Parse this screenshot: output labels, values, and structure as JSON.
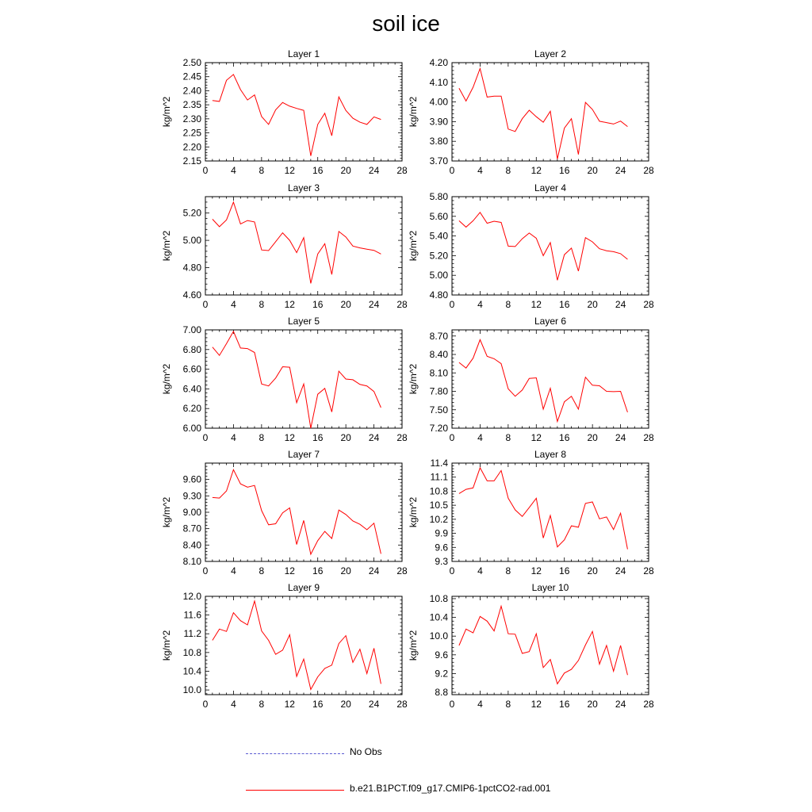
{
  "title": "soil ice",
  "colors": {
    "model": "#ff0000",
    "obs": "#5a5ad2",
    "axis": "#000000"
  },
  "legend": {
    "obs_label": "No Obs",
    "model_label": "b.e21.B1PCT.f09_g17.CMIP6-1pctCO2-rad.001"
  },
  "chart_data": [
    {
      "type": "line",
      "title": "Layer 1",
      "xlabel": "",
      "ylabel": "kg/m^2",
      "xlim": [
        0,
        28
      ],
      "ylim": [
        2.15,
        2.5
      ],
      "xticks": [
        0,
        4,
        8,
        12,
        16,
        20,
        24,
        28
      ],
      "xtick_labels": [
        "0",
        "4",
        "8",
        "12",
        "16",
        "20",
        "24",
        "28"
      ],
      "yticks": [
        2.15,
        2.2,
        2.25,
        2.3,
        2.35,
        2.4,
        2.45,
        2.5
      ],
      "ytick_labels": [
        "2.15",
        "2.20",
        "2.25",
        "2.30",
        "2.35",
        "2.40",
        "2.45",
        "2.50"
      ],
      "series": [
        {
          "name": "b.e21.B1PCT.f09_g17.CMIP6-1pctCO2-rad.001",
          "x": [
            1,
            2,
            3,
            4,
            5,
            6,
            7,
            8,
            9,
            10,
            11,
            12,
            13,
            14,
            15,
            16,
            17,
            18,
            19,
            20,
            21,
            22,
            23,
            24,
            25
          ],
          "y": [
            2.365,
            2.362,
            2.437,
            2.458,
            2.404,
            2.367,
            2.385,
            2.308,
            2.28,
            2.332,
            2.358,
            2.345,
            2.337,
            2.33,
            2.168,
            2.28,
            2.32,
            2.24,
            2.378,
            2.33,
            2.302,
            2.288,
            2.28,
            2.307,
            2.298
          ]
        }
      ]
    },
    {
      "type": "line",
      "title": "Layer 2",
      "xlabel": "",
      "ylabel": "kg/m^2",
      "xlim": [
        0,
        28
      ],
      "ylim": [
        3.7,
        4.2
      ],
      "xticks": [
        0,
        4,
        8,
        12,
        16,
        20,
        24,
        28
      ],
      "xtick_labels": [
        "0",
        "4",
        "8",
        "12",
        "16",
        "20",
        "24",
        "28"
      ],
      "yticks": [
        3.7,
        3.8,
        3.9,
        4.0,
        4.1,
        4.2
      ],
      "ytick_labels": [
        "3.70",
        "3.80",
        "3.90",
        "4.00",
        "4.10",
        "4.20"
      ],
      "series": [
        {
          "name": "b.e21.B1PCT.f09_g17.CMIP6-1pctCO2-rad.001",
          "x": [
            1,
            2,
            3,
            4,
            5,
            6,
            7,
            8,
            9,
            10,
            11,
            12,
            13,
            14,
            15,
            16,
            17,
            18,
            19,
            20,
            21,
            22,
            23,
            24,
            25
          ],
          "y": [
            4.07,
            4.005,
            4.075,
            4.17,
            4.025,
            4.03,
            4.03,
            3.862,
            3.85,
            3.915,
            3.958,
            3.925,
            3.897,
            3.953,
            3.71,
            3.867,
            3.915,
            3.733,
            3.998,
            3.962,
            3.902,
            3.895,
            3.888,
            3.903,
            3.875
          ]
        }
      ]
    },
    {
      "type": "line",
      "title": "Layer 3",
      "xlabel": "",
      "ylabel": "kg/m^2",
      "xlim": [
        0,
        28
      ],
      "ylim": [
        4.6,
        5.32
      ],
      "xticks": [
        0,
        4,
        8,
        12,
        16,
        20,
        24,
        28
      ],
      "xtick_labels": [
        "0",
        "4",
        "8",
        "12",
        "16",
        "20",
        "24",
        "28"
      ],
      "yticks": [
        4.6,
        4.8,
        5.0,
        5.2
      ],
      "ytick_labels": [
        "4.60",
        "4.80",
        "5.00",
        "5.20"
      ],
      "series": [
        {
          "name": "b.e21.B1PCT.f09_g17.CMIP6-1pctCO2-rad.001",
          "x": [
            1,
            2,
            3,
            4,
            5,
            6,
            7,
            8,
            9,
            10,
            11,
            12,
            13,
            14,
            15,
            16,
            17,
            18,
            19,
            20,
            21,
            22,
            23,
            24,
            25
          ],
          "y": [
            5.155,
            5.1,
            5.15,
            5.28,
            5.12,
            5.145,
            5.135,
            4.93,
            4.925,
            4.99,
            5.055,
            5.0,
            4.91,
            5.02,
            4.685,
            4.9,
            4.975,
            4.75,
            5.065,
            5.025,
            4.958,
            4.945,
            4.935,
            4.927,
            4.9
          ]
        }
      ]
    },
    {
      "type": "line",
      "title": "Layer 4",
      "xlabel": "",
      "ylabel": "kg/m^2",
      "xlim": [
        0,
        28
      ],
      "ylim": [
        4.8,
        5.8
      ],
      "xticks": [
        0,
        4,
        8,
        12,
        16,
        20,
        24,
        28
      ],
      "xtick_labels": [
        "0",
        "4",
        "8",
        "12",
        "16",
        "20",
        "24",
        "28"
      ],
      "yticks": [
        4.8,
        5.0,
        5.2,
        5.4,
        5.6,
        5.8
      ],
      "ytick_labels": [
        "4.80",
        "5.00",
        "5.20",
        "5.40",
        "5.60",
        "5.80"
      ],
      "series": [
        {
          "name": "b.e21.B1PCT.f09_g17.CMIP6-1pctCO2-rad.001",
          "x": [
            1,
            2,
            3,
            4,
            5,
            6,
            7,
            8,
            9,
            10,
            11,
            12,
            13,
            14,
            15,
            16,
            17,
            18,
            19,
            20,
            21,
            22,
            23,
            24,
            25
          ],
          "y": [
            5.555,
            5.49,
            5.555,
            5.64,
            5.53,
            5.55,
            5.538,
            5.297,
            5.293,
            5.372,
            5.43,
            5.377,
            5.2,
            5.333,
            4.95,
            5.21,
            5.277,
            5.043,
            5.383,
            5.34,
            5.27,
            5.25,
            5.24,
            5.22,
            5.163
          ]
        }
      ]
    },
    {
      "type": "line",
      "title": "Layer 5",
      "xlabel": "",
      "ylabel": "kg/m^2",
      "xlim": [
        0,
        28
      ],
      "ylim": [
        6.0,
        7.0
      ],
      "xticks": [
        0,
        4,
        8,
        12,
        16,
        20,
        24,
        28
      ],
      "xtick_labels": [
        "0",
        "4",
        "8",
        "12",
        "16",
        "20",
        "24",
        "28"
      ],
      "yticks": [
        6.0,
        6.2,
        6.4,
        6.6,
        6.8,
        7.0
      ],
      "ytick_labels": [
        "6.00",
        "6.20",
        "6.40",
        "6.60",
        "6.80",
        "7.00"
      ],
      "series": [
        {
          "name": "b.e21.B1PCT.f09_g17.CMIP6-1pctCO2-rad.001",
          "x": [
            1,
            2,
            3,
            4,
            5,
            6,
            7,
            8,
            9,
            10,
            11,
            12,
            13,
            14,
            15,
            16,
            17,
            18,
            19,
            20,
            21,
            22,
            23,
            24,
            25
          ],
          "y": [
            6.825,
            6.74,
            6.86,
            6.985,
            6.815,
            6.81,
            6.77,
            6.45,
            6.43,
            6.51,
            6.625,
            6.62,
            6.26,
            6.45,
            6.0,
            6.345,
            6.405,
            6.165,
            6.58,
            6.5,
            6.493,
            6.445,
            6.43,
            6.373,
            6.21
          ]
        }
      ]
    },
    {
      "type": "line",
      "title": "Layer 6",
      "xlabel": "",
      "ylabel": "kg/m^2",
      "xlim": [
        0,
        28
      ],
      "ylim": [
        7.2,
        8.8
      ],
      "xticks": [
        0,
        4,
        8,
        12,
        16,
        20,
        24,
        28
      ],
      "xtick_labels": [
        "0",
        "4",
        "8",
        "12",
        "16",
        "20",
        "24",
        "28"
      ],
      "yticks": [
        7.2,
        7.5,
        7.8,
        8.1,
        8.4,
        8.7
      ],
      "ytick_labels": [
        "7.20",
        "7.50",
        "7.80",
        "8.10",
        "8.40",
        "8.70"
      ],
      "series": [
        {
          "name": "b.e21.B1PCT.f09_g17.CMIP6-1pctCO2-rad.001",
          "x": [
            1,
            2,
            3,
            4,
            5,
            6,
            7,
            8,
            9,
            10,
            11,
            12,
            13,
            14,
            15,
            16,
            17,
            18,
            19,
            20,
            21,
            22,
            23,
            24,
            25
          ],
          "y": [
            8.27,
            8.18,
            8.34,
            8.64,
            8.37,
            8.33,
            8.25,
            7.84,
            7.72,
            7.82,
            8.01,
            8.02,
            7.51,
            7.85,
            7.31,
            7.63,
            7.72,
            7.51,
            8.03,
            7.9,
            7.89,
            7.8,
            7.795,
            7.8,
            7.46
          ]
        }
      ]
    },
    {
      "type": "line",
      "title": "Layer 7",
      "xlabel": "",
      "ylabel": "kg/m^2",
      "xlim": [
        0,
        28
      ],
      "ylim": [
        8.1,
        9.9
      ],
      "xticks": [
        0,
        4,
        8,
        12,
        16,
        20,
        24,
        28
      ],
      "xtick_labels": [
        "0",
        "4",
        "8",
        "12",
        "16",
        "20",
        "24",
        "28"
      ],
      "yticks": [
        8.1,
        8.4,
        8.7,
        9.0,
        9.3,
        9.6
      ],
      "ytick_labels": [
        "8.10",
        "8.40",
        "8.70",
        "9.00",
        "9.30",
        "9.60"
      ],
      "series": [
        {
          "name": "b.e21.B1PCT.f09_g17.CMIP6-1pctCO2-rad.001",
          "x": [
            1,
            2,
            3,
            4,
            5,
            6,
            7,
            8,
            9,
            10,
            11,
            12,
            13,
            14,
            15,
            16,
            17,
            18,
            19,
            20,
            21,
            22,
            23,
            24,
            25
          ],
          "y": [
            9.27,
            9.26,
            9.39,
            9.78,
            9.52,
            9.46,
            9.49,
            9.03,
            8.77,
            8.79,
            8.99,
            9.08,
            8.41,
            8.85,
            8.23,
            8.48,
            8.65,
            8.52,
            9.04,
            8.96,
            8.84,
            8.78,
            8.68,
            8.8,
            8.24
          ]
        }
      ]
    },
    {
      "type": "line",
      "title": "Layer 8",
      "xlabel": "",
      "ylabel": "kg/m^2",
      "xlim": [
        0,
        28
      ],
      "ylim": [
        9.3,
        11.4
      ],
      "xticks": [
        0,
        4,
        8,
        12,
        16,
        20,
        24,
        28
      ],
      "xtick_labels": [
        "0",
        "4",
        "8",
        "12",
        "16",
        "20",
        "24",
        "28"
      ],
      "yticks": [
        9.3,
        9.6,
        9.9,
        10.2,
        10.5,
        10.8,
        11.1,
        11.4
      ],
      "ytick_labels": [
        "9.3",
        "9.6",
        "9.9",
        "10.2",
        "10.5",
        "10.8",
        "11.1",
        "11.4"
      ],
      "series": [
        {
          "name": "b.e21.B1PCT.f09_g17.CMIP6-1pctCO2-rad.001",
          "x": [
            1,
            2,
            3,
            4,
            5,
            6,
            7,
            8,
            9,
            10,
            11,
            12,
            13,
            14,
            15,
            16,
            17,
            18,
            19,
            20,
            21,
            22,
            23,
            24,
            25
          ],
          "y": [
            10.75,
            10.84,
            10.87,
            11.3,
            11.02,
            11.02,
            11.24,
            10.65,
            10.4,
            10.26,
            10.45,
            10.65,
            9.8,
            10.28,
            9.61,
            9.76,
            10.06,
            10.03,
            10.54,
            10.57,
            10.21,
            10.25,
            9.98,
            10.33,
            9.56
          ]
        }
      ]
    },
    {
      "type": "line",
      "title": "Layer 9",
      "xlabel": "",
      "ylabel": "kg/m^2",
      "xlim": [
        0,
        28
      ],
      "ylim": [
        9.9,
        12.0
      ],
      "xticks": [
        0,
        4,
        8,
        12,
        16,
        20,
        24,
        28
      ],
      "xtick_labels": [
        "0",
        "4",
        "8",
        "12",
        "16",
        "20",
        "24",
        "28"
      ],
      "yticks": [
        10.0,
        10.4,
        10.8,
        11.2,
        11.6,
        12.0
      ],
      "ytick_labels": [
        "10.0",
        "10.4",
        "10.8",
        "11.2",
        "11.6",
        "12.0"
      ],
      "series": [
        {
          "name": "b.e21.B1PCT.f09_g17.CMIP6-1pctCO2-rad.001",
          "x": [
            1,
            2,
            3,
            4,
            5,
            6,
            7,
            8,
            9,
            10,
            11,
            12,
            13,
            14,
            15,
            16,
            17,
            18,
            19,
            20,
            21,
            22,
            23,
            24,
            25
          ],
          "y": [
            11.06,
            11.3,
            11.25,
            11.65,
            11.48,
            11.39,
            11.9,
            11.26,
            11.06,
            10.76,
            10.85,
            11.18,
            10.29,
            10.66,
            10.01,
            10.28,
            10.46,
            10.53,
            10.99,
            11.16,
            10.59,
            10.87,
            10.35,
            10.89,
            10.13
          ]
        }
      ]
    },
    {
      "type": "line",
      "title": "Layer 10",
      "xlabel": "",
      "ylabel": "kg/m^2",
      "xlim": [
        0,
        28
      ],
      "ylim": [
        8.75,
        10.85
      ],
      "xticks": [
        0,
        4,
        8,
        12,
        16,
        20,
        24,
        28
      ],
      "xtick_labels": [
        "0",
        "4",
        "8",
        "12",
        "16",
        "20",
        "24",
        "28"
      ],
      "yticks": [
        8.8,
        9.2,
        9.6,
        10.0,
        10.4,
        10.8
      ],
      "ytick_labels": [
        "8.8",
        "9.2",
        "9.6",
        "10.0",
        "10.4",
        "10.8"
      ],
      "series": [
        {
          "name": "b.e21.B1PCT.f09_g17.CMIP6-1pctCO2-rad.001",
          "x": [
            1,
            2,
            3,
            4,
            5,
            6,
            7,
            8,
            9,
            10,
            11,
            12,
            13,
            14,
            15,
            16,
            17,
            18,
            19,
            20,
            21,
            22,
            23,
            24,
            25
          ],
          "y": [
            9.8,
            10.15,
            10.07,
            10.42,
            10.32,
            10.11,
            10.64,
            10.05,
            10.04,
            9.63,
            9.67,
            10.05,
            9.33,
            9.5,
            8.98,
            9.21,
            9.29,
            9.48,
            9.81,
            10.1,
            9.4,
            9.8,
            9.25,
            9.8,
            9.17
          ]
        }
      ]
    }
  ]
}
